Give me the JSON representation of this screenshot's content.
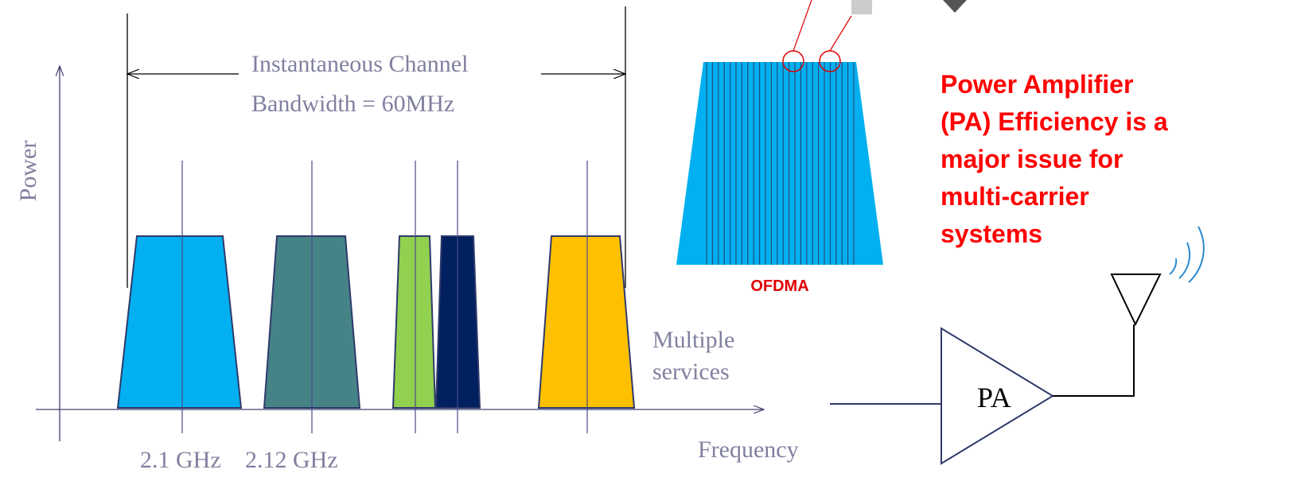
{
  "bandwidth_label": [
    "Instantaneous Channel",
    "Bandwidth = 60MHz"
  ],
  "axis": {
    "y_label": "Power",
    "x_label": "Frequency"
  },
  "carrier_labels": [
    "2.1 GHz",
    "2.12 GHz"
  ],
  "services_label": [
    "Multiple",
    "services"
  ],
  "ofdma_label": "OFDMA",
  "note": [
    "Power Amplifier",
    "(PA) Efficiency is a",
    "major issue for",
    "multi-carrier",
    "systems"
  ],
  "amplifier_label": "PA"
}
